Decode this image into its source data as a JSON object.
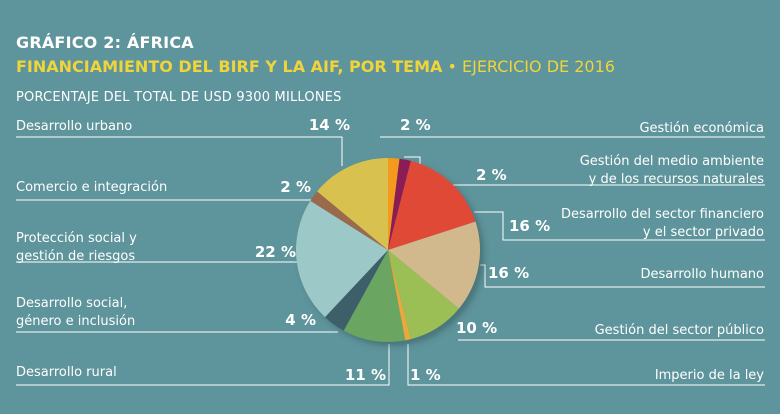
{
  "header": {
    "title": "GRÁFICO 2: ÁFRICA",
    "subtitle_bold": "FINANCIAMIENTO DEL BIRF Y LA AIF, POR TEMA",
    "subtitle_sep": " • ",
    "subtitle_rest": "EJERCICIO DE 2016",
    "caption": "PORCENTAJE DEL TOTAL DE USD 9300 MILLONES"
  },
  "chart_data": {
    "type": "pie",
    "unit": "%",
    "categories": [
      "Gestión económica",
      "Gestión del medio ambiente y de los recursos naturales",
      "Desarrollo del sector financiero y el sector privado",
      "Desarrollo humano",
      "Gestión del sector público",
      "Imperio de la ley",
      "Desarrollo rural",
      "Desarrollo social, género e inclusión",
      "Protección social y gestión de riesgos",
      "Comercio e integración",
      "Desarrollo urbano"
    ],
    "values": [
      2,
      2,
      16,
      16,
      10,
      1,
      11,
      4,
      22,
      2,
      14
    ],
    "value_labels": [
      "2 %",
      "2 %",
      "16 %",
      "16 %",
      "10 %",
      "1 %",
      "11 %",
      "4 %",
      "22 %",
      "2 %",
      "14 %"
    ],
    "label_lines": [
      [
        "Gestión económica"
      ],
      [
        "Gestión del medio ambiente",
        "y de los recursos naturales"
      ],
      [
        "Desarrollo del sector financiero",
        "y el sector privado"
      ],
      [
        "Desarrollo humano"
      ],
      [
        "Gestión del sector público"
      ],
      [
        "Imperio de la ley"
      ],
      [
        "Desarrollo rural"
      ],
      [
        "Desarrollo social,",
        "género e inclusión"
      ],
      [
        "Protección social y",
        "gestión de riesgos"
      ],
      [
        "Comercio e integración"
      ],
      [
        "Desarrollo urbano"
      ]
    ],
    "colors": [
      "#f39a1e",
      "#8c1f55",
      "#e04a35",
      "#d2b98d",
      "#9cbf55",
      "#e8a93c",
      "#6ba562",
      "#3e5e6a",
      "#9cc8c8",
      "#9a6b4e",
      "#d9c150"
    ]
  }
}
